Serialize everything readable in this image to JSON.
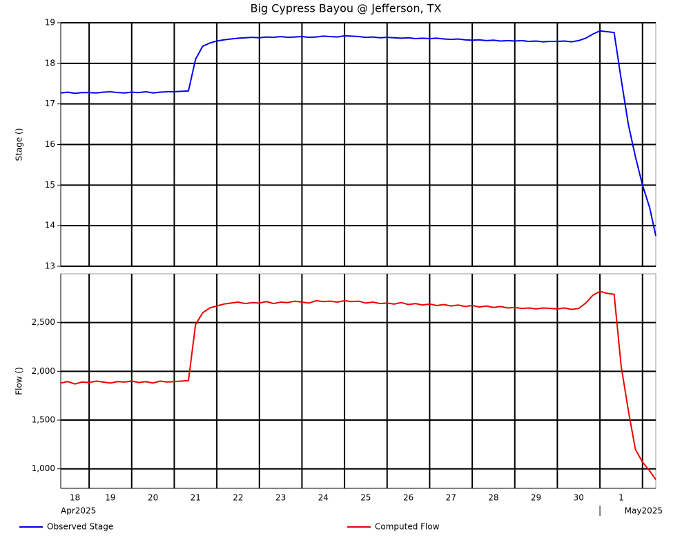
{
  "chart_data": {
    "type": "line",
    "title": "Big Cypress Bayou @ Jefferson, TX",
    "x": [
      "2025-04-18T08:00",
      "2025-04-18T12:00",
      "2025-04-18T16:00",
      "2025-04-18T20:00",
      "2025-04-19T00:00",
      "2025-04-19T04:00",
      "2025-04-19T08:00",
      "2025-04-19T12:00",
      "2025-04-19T16:00",
      "2025-04-19T20:00",
      "2025-04-20T00:00",
      "2025-04-20T04:00",
      "2025-04-20T08:00",
      "2025-04-20T12:00",
      "2025-04-20T16:00",
      "2025-04-20T20:00",
      "2025-04-21T00:00",
      "2025-04-21T04:00",
      "2025-04-21T08:00",
      "2025-04-21T12:00",
      "2025-04-21T16:00",
      "2025-04-21T20:00",
      "2025-04-22T00:00",
      "2025-04-22T04:00",
      "2025-04-22T08:00",
      "2025-04-22T12:00",
      "2025-04-22T16:00",
      "2025-04-22T20:00",
      "2025-04-23T00:00",
      "2025-04-23T04:00",
      "2025-04-23T08:00",
      "2025-04-23T12:00",
      "2025-04-23T16:00",
      "2025-04-23T20:00",
      "2025-04-24T00:00",
      "2025-04-24T04:00",
      "2025-04-24T08:00",
      "2025-04-24T12:00",
      "2025-04-24T16:00",
      "2025-04-24T20:00",
      "2025-04-25T00:00",
      "2025-04-25T04:00",
      "2025-04-25T08:00",
      "2025-04-25T12:00",
      "2025-04-25T16:00",
      "2025-04-25T20:00",
      "2025-04-26T00:00",
      "2025-04-26T04:00",
      "2025-04-26T08:00",
      "2025-04-26T12:00",
      "2025-04-26T16:00",
      "2025-04-26T20:00",
      "2025-04-27T00:00",
      "2025-04-27T04:00",
      "2025-04-27T08:00",
      "2025-04-27T12:00",
      "2025-04-27T16:00",
      "2025-04-27T20:00",
      "2025-04-28T00:00",
      "2025-04-28T04:00",
      "2025-04-28T08:00",
      "2025-04-28T12:00",
      "2025-04-28T16:00",
      "2025-04-28T20:00",
      "2025-04-29T00:00",
      "2025-04-29T04:00",
      "2025-04-29T08:00",
      "2025-04-29T12:00",
      "2025-04-29T16:00",
      "2025-04-29T20:00",
      "2025-04-30T00:00",
      "2025-04-30T04:00",
      "2025-04-30T08:00",
      "2025-04-30T12:00",
      "2025-04-30T16:00",
      "2025-04-30T20:00",
      "2025-05-01T00:00",
      "2025-05-01T04:00",
      "2025-05-01T08:00",
      "2025-05-01T12:00",
      "2025-05-01T16:00",
      "2025-05-01T20:00",
      "2025-05-02T00:00",
      "2025-05-02T04:00",
      "2025-05-02T07:30"
    ],
    "xlim": [
      "2025-04-18T08:00",
      "2025-05-02T07:30"
    ],
    "xticks": [
      "2025-04-19T00:00",
      "2025-04-20T00:00",
      "2025-04-21T00:00",
      "2025-04-22T00:00",
      "2025-04-23T00:00",
      "2025-04-24T00:00",
      "2025-04-25T00:00",
      "2025-04-26T00:00",
      "2025-04-27T00:00",
      "2025-04-28T00:00",
      "2025-04-29T00:00",
      "2025-04-30T00:00",
      "2025-05-01T00:00",
      "2025-05-02T00:00"
    ],
    "day_labels": [
      {
        "value": "2025-04-18T00:00",
        "label": "18"
      },
      {
        "value": "2025-04-19T00:00",
        "label": "19"
      },
      {
        "value": "2025-04-20T00:00",
        "label": "20"
      },
      {
        "value": "2025-04-21T00:00",
        "label": "21"
      },
      {
        "value": "2025-04-22T00:00",
        "label": "22"
      },
      {
        "value": "2025-04-23T00:00",
        "label": "23"
      },
      {
        "value": "2025-04-24T00:00",
        "label": "24"
      },
      {
        "value": "2025-04-25T00:00",
        "label": "25"
      },
      {
        "value": "2025-04-26T00:00",
        "label": "26"
      },
      {
        "value": "2025-04-27T00:00",
        "label": "27"
      },
      {
        "value": "2025-04-28T00:00",
        "label": "28"
      },
      {
        "value": "2025-04-29T00:00",
        "label": "29"
      },
      {
        "value": "2025-04-30T00:00",
        "label": "30"
      },
      {
        "value": "2025-05-01T00:00",
        "label": "1"
      }
    ],
    "month_labels": [
      {
        "value": "2025-04-18T08:00",
        "label": "Apr2025"
      },
      {
        "value": "2025-05-01T00:00",
        "label": "May2025"
      }
    ],
    "grid": true,
    "panels": [
      {
        "ylabel": "Stage ()",
        "ylim": [
          13,
          19
        ],
        "yticks": [
          13,
          14,
          15,
          16,
          17,
          18,
          19
        ],
        "series": [
          {
            "name": "Observed Stage",
            "color": "#0000ee",
            "values": [
              17.27,
              17.29,
              17.26,
              17.28,
              17.28,
              17.27,
              17.29,
              17.3,
              17.28,
              17.27,
              17.29,
              17.28,
              17.3,
              17.27,
              17.29,
              17.3,
              17.3,
              17.31,
              17.32,
              18.1,
              18.42,
              18.5,
              18.55,
              18.58,
              18.6,
              18.62,
              18.63,
              18.64,
              18.63,
              18.65,
              18.64,
              18.66,
              18.64,
              18.65,
              18.66,
              18.64,
              18.65,
              18.67,
              18.66,
              18.65,
              18.68,
              18.67,
              18.66,
              18.64,
              18.65,
              18.63,
              18.64,
              18.63,
              18.62,
              18.63,
              18.61,
              18.62,
              18.61,
              18.62,
              18.6,
              18.59,
              18.6,
              18.58,
              18.57,
              18.58,
              18.56,
              18.57,
              18.55,
              18.56,
              18.55,
              18.56,
              18.54,
              18.55,
              18.53,
              18.54,
              18.54,
              18.55,
              18.53,
              18.56,
              18.62,
              18.72,
              18.8,
              18.78,
              18.76,
              17.6,
              16.5,
              15.7,
              15.0,
              14.45,
              13.75
            ]
          }
        ]
      },
      {
        "ylabel": "Flow ()",
        "ylim": [
          800,
          3000
        ],
        "yticks": [
          {
            "value": 1000,
            "label": "1,000"
          },
          {
            "value": 1500,
            "label": "1,500"
          },
          {
            "value": 2000,
            "label": "2,000"
          },
          {
            "value": 2500,
            "label": "2,500"
          }
        ],
        "series": [
          {
            "name": "Computed Flow",
            "color": "#ee0000",
            "values": [
              1880,
              1895,
              1870,
              1890,
              1885,
              1900,
              1890,
              1880,
              1895,
              1890,
              1900,
              1885,
              1895,
              1880,
              1900,
              1890,
              1895,
              1900,
              1905,
              2480,
              2600,
              2650,
              2670,
              2690,
              2700,
              2710,
              2695,
              2705,
              2700,
              2715,
              2695,
              2710,
              2705,
              2720,
              2710,
              2700,
              2725,
              2715,
              2720,
              2710,
              2725,
              2715,
              2720,
              2700,
              2710,
              2695,
              2700,
              2690,
              2705,
              2685,
              2695,
              2680,
              2690,
              2675,
              2685,
              2670,
              2680,
              2665,
              2675,
              2660,
              2670,
              2655,
              2665,
              2650,
              2655,
              2645,
              2650,
              2640,
              2650,
              2645,
              2640,
              2650,
              2635,
              2645,
              2700,
              2780,
              2820,
              2800,
              2790,
              2050,
              1600,
              1200,
              1070,
              980,
              890
            ]
          }
        ]
      }
    ]
  }
}
